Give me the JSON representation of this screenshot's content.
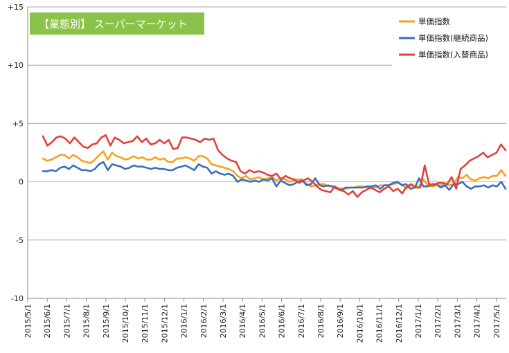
{
  "chart_data": {
    "type": "line",
    "title": "【業態別】 スーパーマーケット",
    "title_bg": "#8bc34a",
    "xlabel": "",
    "ylabel": "",
    "ylim": [
      -10,
      15
    ],
    "yticks": [
      15,
      10,
      5,
      0,
      -5,
      -10
    ],
    "ytick_labels": [
      "+15",
      "+10",
      "+5",
      "0",
      "-5",
      "-10"
    ],
    "x_tick_labels": [
      "2015/5/1",
      "2015/6/1",
      "2015/7/1",
      "2015/8/1",
      "2015/9/1",
      "2015/10/1",
      "2015/11/1",
      "2015/12/1",
      "2016/1/1",
      "2016/2/1",
      "2016/3/1",
      "2016/4/1",
      "2016/5/1",
      "2016/6/1",
      "2016/7/1",
      "2016/8/1",
      "2016/9/1",
      "2016/10/1",
      "2016/11/1",
      "2016/12/1",
      "2017/1/1",
      "2017/2/1",
      "2017/3/1",
      "2017/4/1",
      "2017/5/1"
    ],
    "grid": "horizontal",
    "legend_position": "top-right",
    "series": [
      {
        "name": "単価指数",
        "color": "#f7a21b",
        "values": [
          2.0,
          1.8,
          1.9,
          2.1,
          2.3,
          2.3,
          2.0,
          2.3,
          2.1,
          1.8,
          1.7,
          1.6,
          1.9,
          2.3,
          2.6,
          1.9,
          2.5,
          2.2,
          2.1,
          1.9,
          2.0,
          2.2,
          2.0,
          2.1,
          1.9,
          1.9,
          2.1,
          1.9,
          2.0,
          1.7,
          1.7,
          2.0,
          2.0,
          2.1,
          2.0,
          1.8,
          2.2,
          2.2,
          2.0,
          1.5,
          1.4,
          1.3,
          1.2,
          1.1,
          0.9,
          0.5,
          0.3,
          0.5,
          0.2,
          0.3,
          0.4,
          0.2,
          0.3,
          0.4,
          0.1,
          0.3,
          0.2,
          0.0,
          0.1,
          0.2,
          0.2,
          -0.2,
          -0.4,
          -0.3,
          -0.2,
          -0.2,
          -0.4,
          -0.4,
          -0.5,
          -0.6,
          -0.6,
          -0.5,
          -0.5,
          -0.4,
          -0.4,
          -0.5,
          -0.4,
          -0.5,
          -0.3,
          -0.3,
          -0.3,
          -0.2,
          -0.1,
          -0.2,
          -0.6,
          -0.3,
          -0.4,
          -0.4,
          0.2,
          -0.3,
          -0.4,
          -0.3,
          -0.3,
          -0.2,
          -0.3,
          -0.2,
          0.4,
          0.3,
          0.6,
          0.2,
          0.1,
          0.3,
          0.4,
          0.3,
          0.5,
          0.5,
          1.0,
          0.5
        ]
      },
      {
        "name": "単価指数(継続商品)",
        "color": "#3a6fbd",
        "values": [
          0.9,
          0.9,
          1.0,
          0.9,
          1.2,
          1.3,
          1.1,
          1.4,
          1.2,
          1.0,
          1.0,
          0.9,
          1.1,
          1.5,
          1.7,
          1.0,
          1.5,
          1.4,
          1.3,
          1.1,
          1.2,
          1.4,
          1.3,
          1.3,
          1.2,
          1.1,
          1.2,
          1.1,
          1.1,
          1.0,
          1.0,
          1.2,
          1.3,
          1.4,
          1.2,
          1.0,
          1.5,
          1.3,
          1.2,
          0.7,
          0.9,
          0.7,
          0.6,
          0.7,
          0.5,
          0.0,
          0.2,
          0.1,
          0.0,
          0.1,
          0.0,
          0.2,
          0.1,
          0.3,
          -0.4,
          0.1,
          -0.1,
          -0.3,
          -0.2,
          0.0,
          0.1,
          -0.3,
          -0.2,
          0.3,
          -0.3,
          -0.4,
          -0.3,
          -0.4,
          -0.6,
          -0.7,
          -0.5,
          -0.5,
          -0.5,
          -0.5,
          -0.5,
          -0.4,
          -0.4,
          -0.3,
          -0.6,
          -0.3,
          -0.3,
          -0.1,
          0.0,
          -0.3,
          -0.2,
          -0.6,
          -0.5,
          0.3,
          -0.4,
          -0.4,
          -0.2,
          -0.2,
          -0.5,
          -0.3,
          -0.7,
          -0.2,
          -0.2,
          0.0,
          -0.4,
          -0.6,
          -0.4,
          -0.4,
          -0.3,
          -0.5,
          -0.3,
          -0.4,
          0.0,
          -0.6
        ]
      },
      {
        "name": "単価指数(入替商品)",
        "color": "#e0413a",
        "values": [
          3.9,
          3.1,
          3.4,
          3.8,
          3.9,
          3.7,
          3.3,
          3.8,
          3.4,
          3.0,
          2.9,
          3.2,
          3.3,
          3.8,
          4.0,
          3.1,
          3.8,
          3.6,
          3.3,
          3.4,
          3.5,
          3.9,
          3.4,
          3.7,
          3.2,
          3.3,
          3.6,
          3.3,
          3.6,
          2.8,
          2.9,
          3.8,
          3.8,
          3.7,
          3.6,
          3.4,
          3.7,
          3.6,
          3.7,
          2.7,
          2.3,
          2.0,
          1.8,
          1.7,
          0.9,
          0.7,
          1.0,
          0.8,
          0.9,
          0.8,
          0.6,
          0.5,
          0.7,
          0.2,
          0.5,
          0.3,
          0.2,
          -0.1,
          0.1,
          0.3,
          0.0,
          -0.4,
          -0.7,
          -0.8,
          -0.9,
          -0.4,
          -0.7,
          -0.8,
          -1.1,
          -0.8,
          -1.3,
          -0.9,
          -0.7,
          -0.5,
          -0.7,
          -0.9,
          -0.6,
          -0.4,
          -0.8,
          -0.6,
          -1.0,
          -0.4,
          -0.2,
          -0.5,
          -0.5,
          1.4,
          -0.2,
          -0.3,
          -0.1,
          -0.1,
          -0.2,
          0.4,
          -0.6,
          1.1,
          1.4,
          1.8,
          2.0,
          2.2,
          2.5,
          2.1,
          2.3,
          2.5,
          3.2,
          2.7
        ]
      }
    ]
  }
}
